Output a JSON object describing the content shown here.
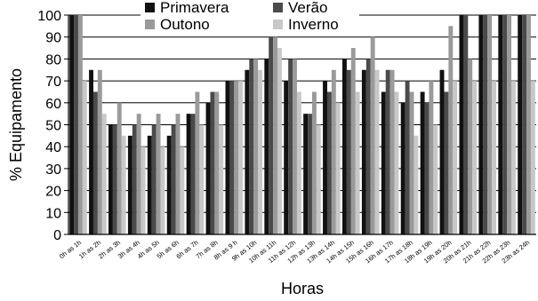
{
  "chart_data": {
    "type": "bar",
    "title": "",
    "xlabel": "Horas",
    "ylabel": "% Equipamento",
    "ylim": [
      0,
      100
    ],
    "yticks": [
      0,
      10,
      20,
      30,
      40,
      50,
      60,
      70,
      80,
      90,
      100
    ],
    "grid": true,
    "legend_position": "top-center",
    "categories": [
      "0h as 1h",
      "1h as 2h",
      "2h as 3h",
      "3h as 4h",
      "4h as 5h",
      "5h as 6h",
      "6h as 7h",
      "7h as 8h",
      "8h as 9 h",
      "9h as 10h",
      "10h as 11h",
      "11h as 12h",
      "12h as 13h",
      "13h as 14h",
      "14h as 15h",
      "15h as 16h",
      "16h as 17h",
      "17h as 18h",
      "18h as 19h",
      "19h as 20h",
      "20h as 21h",
      "21h as 22h",
      "22h as 23h",
      "23h as 24h"
    ],
    "series": [
      {
        "name": "Primavera",
        "color": "#111111",
        "values": [
          100,
          75,
          50,
          45,
          45,
          45,
          55,
          60,
          70,
          75,
          80,
          70,
          55,
          70,
          80,
          75,
          65,
          60,
          65,
          75,
          100,
          100,
          100,
          100
        ]
      },
      {
        "name": "Verão",
        "color": "#4a4a4a",
        "values": [
          100,
          65,
          50,
          50,
          50,
          50,
          55,
          65,
          70,
          80,
          90,
          80,
          55,
          65,
          75,
          80,
          75,
          70,
          60,
          65,
          100,
          100,
          100,
          100
        ]
      },
      {
        "name": "Outono",
        "color": "#9a9a9a",
        "values": [
          100,
          75,
          60,
          55,
          55,
          55,
          65,
          65,
          70,
          80,
          90,
          80,
          65,
          75,
          85,
          90,
          75,
          65,
          70,
          95,
          80,
          100,
          100,
          100
        ]
      },
      {
        "name": "Inverno",
        "color": "#c8c8c8",
        "values": [
          70,
          55,
          45,
          40,
          40,
          40,
          50,
          50,
          70,
          75,
          85,
          65,
          50,
          60,
          65,
          75,
          65,
          45,
          50,
          70,
          70,
          70,
          70,
          70
        ]
      }
    ]
  }
}
